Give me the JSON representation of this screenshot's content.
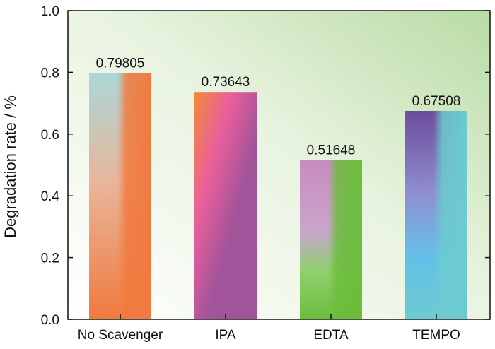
{
  "chart_data": {
    "type": "bar",
    "categories": [
      "No Scavenger",
      "IPA",
      "EDTA",
      "TEMPO"
    ],
    "values": [
      0.79805,
      0.73643,
      0.51648,
      0.67508
    ],
    "value_labels": [
      "0.79805",
      "0.73643",
      "0.51648",
      "0.67508"
    ],
    "ylabel": "Degradation rate / %",
    "xlabel": "",
    "ylim": [
      0,
      1.0
    ],
    "yticks": [
      0.0,
      0.2,
      0.4,
      0.6,
      0.8,
      1.0
    ],
    "ytick_labels": [
      "0.0",
      "0.2",
      "0.4",
      "0.6",
      "0.8",
      "1.0"
    ],
    "grid": false,
    "background_gradient": [
      "#ffffff",
      "#b9dba5"
    ],
    "bar_colors": [
      [
        "#aad8d8",
        "#f07a3f"
      ],
      [
        "#f08a3a",
        "#a2549a"
      ],
      [
        "#c98ac0",
        "#6cbd3c"
      ],
      [
        "#6c4c9b",
        "#6ccbd0"
      ]
    ]
  }
}
